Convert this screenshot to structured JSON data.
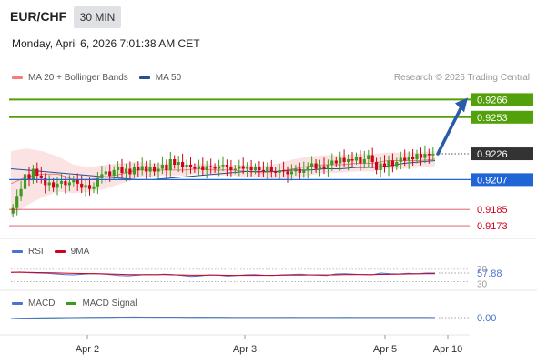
{
  "header": {
    "pair": "EUR/CHF",
    "timeframe": "30 MIN",
    "datetime": "Monday, April 6, 2026 7:01:38 AM CET"
  },
  "legend_price": {
    "item1": "MA 20 + Bollinger Bands",
    "item2": "MA 50",
    "research": "Research © 2026 Trading Central",
    "color1": "#f47c7c",
    "color2": "#2a4e8f"
  },
  "legend_rsi": {
    "item1": "RSI",
    "item2": "9MA",
    "color1": "#4b72d1",
    "color2": "#d0021b"
  },
  "legend_macd": {
    "item1": "MACD",
    "item2": "MACD Signal",
    "color1": "#4b72d1",
    "color2": "#3c9a1e"
  },
  "chart_data": {
    "type": "candlestick",
    "x_ticks": [
      "Apr 2",
      "Apr 3",
      "Apr 5",
      "Apr 10"
    ],
    "ylim": [
      0.9165,
      0.9275
    ],
    "current_price": 0.9226,
    "levels": [
      {
        "value": 0.9266,
        "label": "0.9266",
        "kind": "target",
        "color": "#52a10a"
      },
      {
        "value": 0.9253,
        "label": "0.9253",
        "kind": "target",
        "color": "#52a10a"
      },
      {
        "value": 0.9226,
        "label": "0.9226",
        "kind": "current",
        "color": "#333333"
      },
      {
        "value": 0.9207,
        "label": "0.9207",
        "kind": "pivot",
        "color": "#1f65d6"
      },
      {
        "value": 0.9185,
        "label": "0.9185",
        "kind": "support",
        "color": "#d0021b"
      },
      {
        "value": 0.9173,
        "label": "0.9173",
        "kind": "support",
        "color": "#d0021b"
      }
    ],
    "close": [
      0.9186,
      0.9195,
      0.92,
      0.9211,
      0.9207,
      0.9215,
      0.921,
      0.9208,
      0.9203,
      0.9205,
      0.9201,
      0.9204,
      0.9206,
      0.9203,
      0.9205,
      0.9207,
      0.9204,
      0.9201,
      0.9203,
      0.92,
      0.9202,
      0.9208,
      0.9211,
      0.9213,
      0.921,
      0.9214,
      0.9216,
      0.9212,
      0.9215,
      0.9211,
      0.9216,
      0.9214,
      0.9217,
      0.9213,
      0.9216,
      0.9213,
      0.9215,
      0.9218,
      0.9214,
      0.9222,
      0.9218,
      0.922,
      0.9216,
      0.9218,
      0.9216,
      0.9215,
      0.9217,
      0.9214,
      0.9217,
      0.9216,
      0.9215,
      0.9217,
      0.9218,
      0.9216,
      0.9214,
      0.9215,
      0.9217,
      0.9215,
      0.9216,
      0.9214,
      0.9216,
      0.9214,
      0.9213,
      0.9216,
      0.9213,
      0.9212,
      0.9214,
      0.9213,
      0.9211,
      0.9213,
      0.9215,
      0.9212,
      0.9214,
      0.9216,
      0.9219,
      0.9215,
      0.9217,
      0.9215,
      0.9218,
      0.9221,
      0.9219,
      0.9223,
      0.922,
      0.9222,
      0.9221,
      0.9224,
      0.9219,
      0.9222,
      0.9225,
      0.922,
      0.9214,
      0.9219,
      0.9216,
      0.9221,
      0.9217,
      0.922,
      0.9223,
      0.9221,
      0.9224,
      0.9222,
      0.9226,
      0.9223,
      0.9226,
      0.9225,
      0.9226
    ],
    "ma50": [
      0.9215,
      0.9214,
      0.9213,
      0.9212,
      0.9211,
      0.921,
      0.9209,
      0.9208,
      0.9207,
      0.9207,
      0.9208,
      0.9209,
      0.921,
      0.9211,
      0.9212,
      0.9213,
      0.9213,
      0.9213,
      0.9214,
      0.9214,
      0.9215,
      0.9215,
      0.9216,
      0.9216,
      0.9217,
      0.9219,
      0.922,
      0.9221
    ],
    "bollinger": {
      "upper": [
        0.9228,
        0.923,
        0.9228,
        0.9224,
        0.9218,
        0.9216,
        0.9218,
        0.9219,
        0.922,
        0.9219,
        0.9219,
        0.9218,
        0.9219,
        0.9218,
        0.9218,
        0.9218,
        0.9217,
        0.9219,
        0.9222,
        0.9224,
        0.9225,
        0.9225,
        0.9226,
        0.9226,
        0.9227,
        0.9227,
        0.9227,
        0.9228
      ],
      "lower": [
        0.918,
        0.9188,
        0.9194,
        0.9198,
        0.9197,
        0.9198,
        0.92,
        0.9204,
        0.9208,
        0.9209,
        0.921,
        0.921,
        0.9211,
        0.921,
        0.921,
        0.9209,
        0.9208,
        0.9207,
        0.9208,
        0.921,
        0.9212,
        0.9212,
        0.9213,
        0.9213,
        0.9215,
        0.9215,
        0.9216,
        0.9217
      ],
      "mid": [
        0.9204,
        0.9209,
        0.9211,
        0.9211,
        0.9207,
        0.9207,
        0.9209,
        0.9211,
        0.9214,
        0.9214,
        0.9214,
        0.9214,
        0.9215,
        0.9214,
        0.9214,
        0.9213,
        0.9212,
        0.9213,
        0.9215,
        0.9217,
        0.9218,
        0.9218,
        0.9219,
        0.9219,
        0.9221,
        0.9221,
        0.9221,
        0.9222
      ]
    },
    "rsi": {
      "current_label": "57.88",
      "upper_label": "70",
      "lower_label": "30",
      "values": [
        60,
        61,
        59,
        58,
        57,
        55,
        53,
        52,
        54,
        56,
        55,
        53,
        50,
        49,
        51,
        53,
        52,
        54,
        53,
        50,
        47,
        49,
        52,
        51,
        48,
        50,
        52,
        53,
        51,
        50,
        52,
        53,
        54,
        52,
        51,
        50,
        55,
        56,
        54,
        53,
        52,
        58,
        56,
        55,
        57,
        56,
        58,
        57.88
      ]
    },
    "macd": {
      "current_label": "0.00",
      "macd": [
        -20,
        -12,
        -8,
        -4,
        -3,
        0,
        2,
        4,
        6,
        8,
        10,
        11,
        10,
        8,
        9,
        7,
        6,
        7,
        5,
        4,
        3,
        2,
        1,
        2,
        3,
        4,
        2,
        1,
        2,
        3,
        4,
        2,
        3,
        2,
        1,
        3,
        2,
        1,
        0
      ],
      "signal": [
        -22,
        -16,
        -11,
        -7,
        -5,
        -2,
        0,
        2,
        4,
        6,
        8,
        9,
        9,
        8,
        8,
        7,
        6,
        6,
        5,
        4,
        3,
        2,
        2,
        2,
        2,
        3,
        2,
        2,
        2,
        2,
        3,
        2,
        2,
        2,
        2,
        2,
        2,
        1,
        1
      ]
    }
  }
}
